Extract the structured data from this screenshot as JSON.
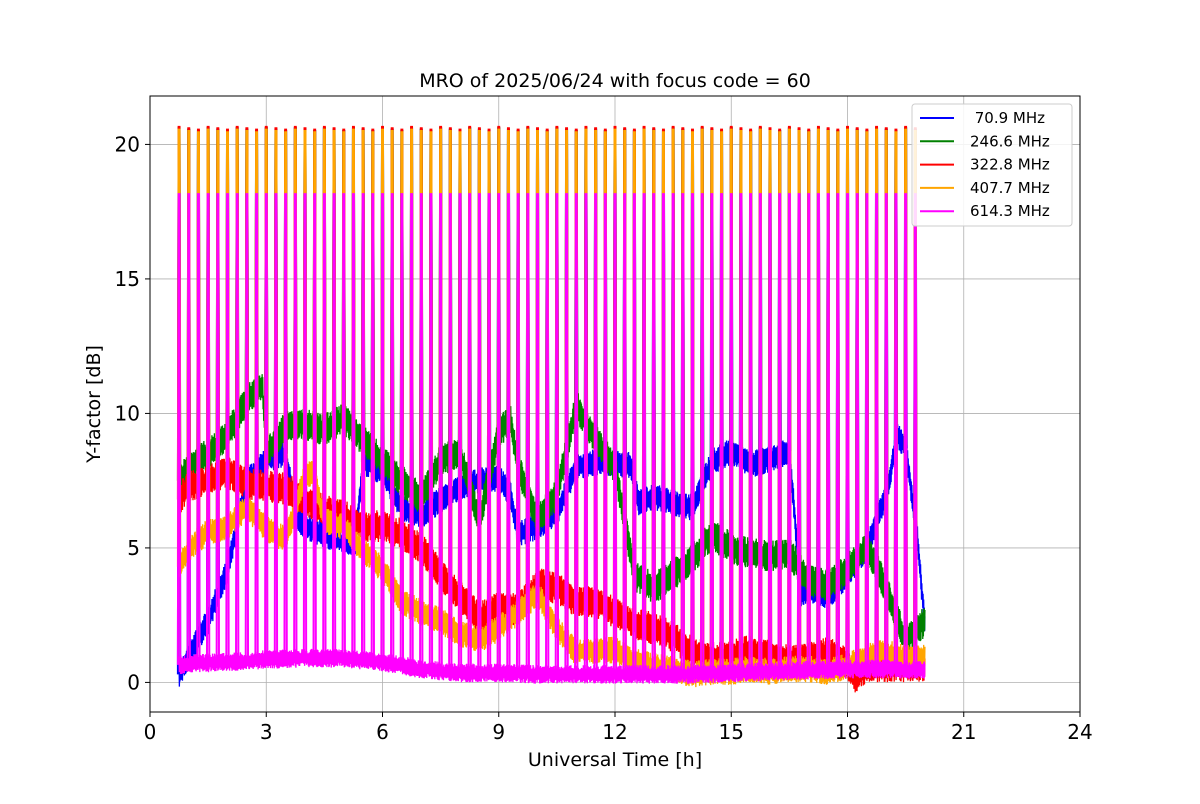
{
  "chart_data": {
    "type": "line",
    "title": "MRO of 2025/06/24 with focus code = 60",
    "xlabel": "Universal Time [h]",
    "ylabel": "Y-factor [dB]",
    "xlim": [
      0,
      24
    ],
    "ylim": [
      -1.1,
      21.8
    ],
    "xticks": [
      0,
      3,
      6,
      9,
      12,
      15,
      18,
      21,
      24
    ],
    "yticks": [
      0,
      5,
      10,
      15,
      20
    ],
    "grid": true,
    "legend_position": "top-right",
    "data_range_hours": [
      0.75,
      20.0
    ],
    "calibration_spikes": {
      "interval_hours": 0.25,
      "first_hour": 0.75,
      "last_hour": 19.75,
      "peak_by_series": {
        "70.9 MHz": 20.6,
        "246.6 MHz": 20.6,
        "322.8 MHz": 20.65,
        "407.7 MHz": 20.55,
        "614.3 MHz": 18.15
      }
    },
    "series": [
      {
        "name": " 70.9 MHz",
        "color": "#0000ff",
        "band_width": 0.5,
        "x": [
          0.75,
          1.0,
          1.5,
          2.0,
          2.5,
          3.0,
          3.5,
          3.8,
          4.0,
          4.5,
          5.0,
          5.3,
          5.5,
          6.0,
          6.5,
          7.0,
          7.5,
          8.0,
          8.5,
          9.0,
          9.3,
          9.5,
          10.0,
          10.5,
          11.0,
          11.5,
          12.0,
          12.4,
          12.6,
          13.0,
          13.5,
          14.0,
          14.5,
          15.0,
          15.5,
          16.0,
          16.5,
          16.8,
          17.0,
          17.5,
          18.0,
          18.5,
          19.0,
          19.3,
          19.5,
          19.8,
          20.0
        ],
        "y": [
          0.3,
          1.0,
          2.3,
          4.2,
          7.5,
          8.3,
          8.5,
          6.0,
          5.8,
          5.5,
          5.2,
          5.2,
          8.2,
          7.8,
          6.5,
          6.2,
          6.8,
          7.2,
          7.5,
          7.6,
          7.0,
          5.5,
          5.8,
          6.3,
          8.0,
          8.2,
          8.1,
          8.1,
          6.7,
          6.9,
          6.7,
          6.5,
          8.2,
          8.6,
          8.1,
          8.3,
          8.6,
          3.3,
          3.5,
          3.2,
          4.0,
          5.0,
          7.0,
          9.2,
          8.7,
          5.5,
          2.0
        ]
      },
      {
        "name": "246.6 MHz",
        "color": "#008000",
        "band_width": 0.6,
        "x": [
          0.75,
          1.0,
          1.5,
          2.0,
          2.5,
          2.9,
          3.0,
          3.5,
          4.0,
          4.5,
          5.0,
          5.5,
          6.0,
          6.5,
          7.0,
          7.5,
          8.0,
          8.5,
          9.0,
          9.3,
          9.5,
          10.0,
          10.5,
          11.0,
          11.5,
          12.0,
          12.5,
          13.0,
          13.5,
          14.0,
          14.5,
          15.0,
          15.5,
          16.0,
          16.5,
          17.0,
          17.5,
          18.0,
          18.5,
          19.0,
          19.5,
          20.0
        ],
        "y": [
          7.5,
          8.0,
          8.5,
          9.2,
          10.5,
          11.0,
          8.5,
          9.5,
          9.6,
          9.4,
          9.8,
          9.0,
          8.2,
          7.5,
          6.8,
          8.3,
          8.5,
          6.0,
          9.3,
          9.8,
          8.0,
          6.0,
          7.0,
          10.3,
          9.0,
          8.0,
          4.0,
          3.5,
          4.0,
          4.6,
          5.5,
          5.0,
          4.8,
          4.7,
          4.8,
          3.8,
          3.6,
          4.2,
          5.0,
          3.5,
          1.5,
          2.3
        ]
      },
      {
        "name": "322.8 MHz",
        "color": "#ff0000",
        "band_width": 0.6,
        "x": [
          0.75,
          1.0,
          1.5,
          2.0,
          2.5,
          3.0,
          3.5,
          4.0,
          4.5,
          5.0,
          5.5,
          6.0,
          6.5,
          7.0,
          7.5,
          8.0,
          8.5,
          9.0,
          9.5,
          10.0,
          10.5,
          11.0,
          11.5,
          12.0,
          12.5,
          13.0,
          13.5,
          14.0,
          14.5,
          15.0,
          15.5,
          16.0,
          16.5,
          17.0,
          17.5,
          18.0,
          18.2,
          18.5,
          19.0,
          19.5,
          20.0
        ],
        "y": [
          6.8,
          7.3,
          7.5,
          7.8,
          7.4,
          7.3,
          7.2,
          6.8,
          6.4,
          6.2,
          5.8,
          5.8,
          5.5,
          5.0,
          4.0,
          3.2,
          2.4,
          2.8,
          2.7,
          3.7,
          3.5,
          3.0,
          3.0,
          2.6,
          2.2,
          2.0,
          1.7,
          1.1,
          0.9,
          1.0,
          1.2,
          1.0,
          0.8,
          0.9,
          1.1,
          0.7,
          0.2,
          0.6,
          0.6,
          0.6,
          0.6
        ]
      },
      {
        "name": "407.7 MHz",
        "color": "#ffa500",
        "band_width": 0.5,
        "x": [
          0.75,
          1.0,
          1.5,
          2.0,
          2.5,
          3.0,
          3.5,
          4.0,
          4.2,
          4.5,
          5.0,
          5.5,
          6.0,
          6.5,
          7.0,
          7.5,
          8.0,
          8.5,
          9.0,
          9.5,
          10.0,
          10.5,
          11.0,
          11.5,
          12.0,
          12.5,
          13.0,
          13.5,
          14.0,
          14.5,
          15.0,
          15.5,
          16.0,
          16.5,
          17.0,
          17.5,
          18.0,
          18.5,
          19.0,
          19.5,
          20.0
        ],
        "y": [
          4.3,
          5.0,
          5.6,
          5.8,
          6.5,
          5.7,
          5.3,
          7.7,
          7.8,
          6.0,
          5.8,
          4.9,
          4.2,
          3.0,
          2.6,
          2.3,
          1.8,
          1.6,
          2.0,
          2.6,
          3.3,
          2.0,
          1.1,
          1.2,
          1.2,
          0.8,
          0.6,
          0.5,
          0.3,
          0.4,
          0.4,
          0.5,
          0.4,
          0.5,
          0.5,
          0.4,
          0.6,
          1.0,
          1.1,
          0.9,
          0.9
        ]
      },
      {
        "name": "614.3 MHz",
        "color": "#ff00ff",
        "band_width": 0.35,
        "x": [
          0.75,
          1.0,
          2.0,
          3.0,
          4.0,
          5.0,
          6.0,
          7.0,
          8.0,
          9.0,
          10.0,
          11.0,
          12.0,
          13.0,
          14.0,
          15.0,
          16.0,
          17.0,
          18.0,
          19.0,
          20.0
        ],
        "y": [
          0.65,
          0.7,
          0.75,
          0.85,
          0.9,
          0.9,
          0.75,
          0.5,
          0.35,
          0.35,
          0.3,
          0.3,
          0.3,
          0.3,
          0.3,
          0.35,
          0.4,
          0.45,
          0.5,
          0.5,
          0.45
        ]
      }
    ]
  }
}
